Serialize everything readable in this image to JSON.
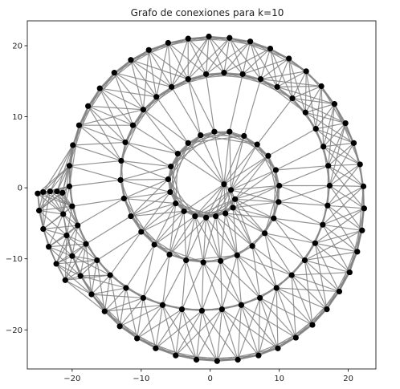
{
  "chart_data": {
    "type": "scatter",
    "title": "Grafo de conexiones para k=10",
    "xlabel": "",
    "ylabel": "",
    "xlim": [
      -26.5,
      24.0
    ],
    "ylim": [
      -25.5,
      23.5
    ],
    "xticks": [
      -20,
      -10,
      0,
      10,
      20
    ],
    "yticks": [
      -20,
      -10,
      0,
      10,
      20
    ],
    "xtick_labels": [
      "−20",
      "−10",
      "0",
      "10",
      "20"
    ],
    "ytick_labels": [
      "−20",
      "−10",
      "0",
      "10",
      "20"
    ],
    "grid": false,
    "legend": "none",
    "k": 10,
    "node_color": "#000000",
    "edge_color": "#808080",
    "nodes": [
      {
        "x": 2.0,
        "y": 0.5
      },
      {
        "x": 3.0,
        "y": -0.3
      },
      {
        "x": 3.6,
        "y": -1.6
      },
      {
        "x": 3.3,
        "y": -2.8
      },
      {
        "x": 2.2,
        "y": -3.6
      },
      {
        "x": 0.8,
        "y": -4.0
      },
      {
        "x": -0.6,
        "y": -4.2
      },
      {
        "x": -2.2,
        "y": -4.0
      },
      {
        "x": -3.8,
        "y": -3.3
      },
      {
        "x": -5.0,
        "y": -2.2
      },
      {
        "x": -5.8,
        "y": -0.6
      },
      {
        "x": -6.1,
        "y": 1.2
      },
      {
        "x": -5.7,
        "y": 3.0
      },
      {
        "x": -4.7,
        "y": 4.8
      },
      {
        "x": -3.2,
        "y": 6.3
      },
      {
        "x": -1.4,
        "y": 7.4
      },
      {
        "x": 0.6,
        "y": 7.9
      },
      {
        "x": 2.8,
        "y": 7.9
      },
      {
        "x": 4.9,
        "y": 7.3
      },
      {
        "x": 6.8,
        "y": 6.1
      },
      {
        "x": 8.4,
        "y": 4.5
      },
      {
        "x": 9.5,
        "y": 2.5
      },
      {
        "x": 10.0,
        "y": 0.3
      },
      {
        "x": 9.9,
        "y": -2.0
      },
      {
        "x": 9.2,
        "y": -4.3
      },
      {
        "x": 7.9,
        "y": -6.4
      },
      {
        "x": 6.1,
        "y": -8.2
      },
      {
        "x": 3.9,
        "y": -9.5
      },
      {
        "x": 1.5,
        "y": -10.3
      },
      {
        "x": -1.0,
        "y": -10.5
      },
      {
        "x": -3.5,
        "y": -10.2
      },
      {
        "x": -5.9,
        "y": -9.4
      },
      {
        "x": -8.1,
        "y": -8.0
      },
      {
        "x": -10.0,
        "y": -6.2
      },
      {
        "x": -11.5,
        "y": -4.0
      },
      {
        "x": -12.5,
        "y": -1.5
      },
      {
        "x": -13.0,
        "y": 1.1
      },
      {
        "x": -12.9,
        "y": 3.8
      },
      {
        "x": -12.3,
        "y": 6.4
      },
      {
        "x": -11.2,
        "y": 8.8
      },
      {
        "x": -9.7,
        "y": 11.0
      },
      {
        "x": -7.8,
        "y": 12.8
      },
      {
        "x": -5.6,
        "y": 14.2
      },
      {
        "x": -3.2,
        "y": 15.3
      },
      {
        "x": -0.6,
        "y": 16.0
      },
      {
        "x": 2.0,
        "y": 16.2
      },
      {
        "x": 4.7,
        "y": 16.0
      },
      {
        "x": 7.3,
        "y": 15.3
      },
      {
        "x": 9.7,
        "y": 14.2
      },
      {
        "x": 11.9,
        "y": 12.6
      },
      {
        "x": 13.8,
        "y": 10.6
      },
      {
        "x": 15.3,
        "y": 8.3
      },
      {
        "x": 16.4,
        "y": 5.8
      },
      {
        "x": 17.1,
        "y": 3.1
      },
      {
        "x": 17.3,
        "y": 0.3
      },
      {
        "x": 17.0,
        "y": -2.5
      },
      {
        "x": 16.3,
        "y": -5.2
      },
      {
        "x": 15.2,
        "y": -7.8
      },
      {
        "x": 13.7,
        "y": -10.2
      },
      {
        "x": 11.8,
        "y": -12.3
      },
      {
        "x": 9.6,
        "y": -14.1
      },
      {
        "x": 7.2,
        "y": -15.5
      },
      {
        "x": 4.5,
        "y": -16.5
      },
      {
        "x": 1.7,
        "y": -17.1
      },
      {
        "x": -1.2,
        "y": -17.3
      },
      {
        "x": -4.1,
        "y": -17.1
      },
      {
        "x": -6.9,
        "y": -16.5
      },
      {
        "x": -9.7,
        "y": -15.5
      },
      {
        "x": -12.2,
        "y": -14.1
      },
      {
        "x": -14.5,
        "y": -12.3
      },
      {
        "x": -16.4,
        "y": -10.2
      },
      {
        "x": -18.0,
        "y": -7.9
      },
      {
        "x": -19.2,
        "y": -5.3
      },
      {
        "x": -20.0,
        "y": -2.6
      },
      {
        "x": -20.4,
        "y": 0.2
      },
      {
        "x": -20.4,
        "y": 3.1
      },
      {
        "x": -19.9,
        "y": 6.0
      },
      {
        "x": -19.0,
        "y": 8.8
      },
      {
        "x": -17.7,
        "y": 11.5
      },
      {
        "x": -16.0,
        "y": 14.0
      },
      {
        "x": -13.9,
        "y": 16.2
      },
      {
        "x": -11.5,
        "y": 18.0
      },
      {
        "x": -8.9,
        "y": 19.4
      },
      {
        "x": -6.1,
        "y": 20.4
      },
      {
        "x": -3.2,
        "y": 21.0
      },
      {
        "x": -0.2,
        "y": 21.3
      },
      {
        "x": 2.8,
        "y": 21.1
      },
      {
        "x": 5.8,
        "y": 20.6
      },
      {
        "x": 8.7,
        "y": 19.6
      },
      {
        "x": 11.4,
        "y": 18.2
      },
      {
        "x": 13.9,
        "y": 16.4
      },
      {
        "x": 16.1,
        "y": 14.3
      },
      {
        "x": 18.0,
        "y": 11.8
      },
      {
        "x": 19.6,
        "y": 9.1
      },
      {
        "x": 20.8,
        "y": 6.3
      },
      {
        "x": 21.7,
        "y": 3.3
      },
      {
        "x": 22.2,
        "y": 0.2
      },
      {
        "x": 22.3,
        "y": -2.9
      },
      {
        "x": 22.0,
        "y": -6.0
      },
      {
        "x": 21.3,
        "y": -9.0
      },
      {
        "x": 20.2,
        "y": -11.9
      },
      {
        "x": 18.7,
        "y": -14.6
      },
      {
        "x": 16.9,
        "y": -17.1
      },
      {
        "x": 14.8,
        "y": -19.3
      },
      {
        "x": 12.4,
        "y": -21.1
      },
      {
        "x": 9.8,
        "y": -22.6
      },
      {
        "x": 7.0,
        "y": -23.6
      },
      {
        "x": 4.0,
        "y": -24.2
      },
      {
        "x": 1.0,
        "y": -24.4
      },
      {
        "x": -2.0,
        "y": -24.2
      },
      {
        "x": -5.0,
        "y": -23.6
      },
      {
        "x": -7.9,
        "y": -22.6
      },
      {
        "x": -10.6,
        "y": -21.2
      },
      {
        "x": -13.1,
        "y": -19.5
      },
      {
        "x": -15.3,
        "y": -17.4
      },
      {
        "x": -17.2,
        "y": -15.0
      },
      {
        "x": -18.8,
        "y": -12.4
      },
      {
        "x": -20.0,
        "y": -9.6
      },
      {
        "x": -20.8,
        "y": -6.7
      },
      {
        "x": -21.3,
        "y": -3.7
      },
      {
        "x": -21.4,
        "y": -0.7
      },
      {
        "x": -22.2,
        "y": -0.5
      },
      {
        "x": -23.2,
        "y": -0.5
      },
      {
        "x": -24.2,
        "y": -0.6
      },
      {
        "x": -25.0,
        "y": -0.8
      },
      {
        "x": -24.8,
        "y": -3.2
      },
      {
        "x": -24.2,
        "y": -5.8
      },
      {
        "x": -23.4,
        "y": -8.3
      },
      {
        "x": -22.3,
        "y": -10.7
      },
      {
        "x": -21.0,
        "y": -13.0
      }
    ]
  }
}
